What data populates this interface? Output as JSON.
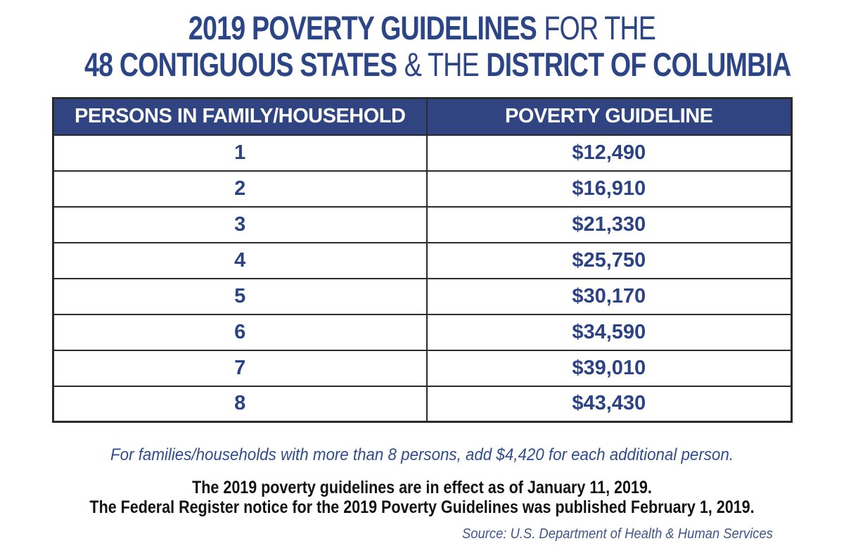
{
  "title": {
    "line1_strong": "2019 POVERTY GUIDELINES",
    "line1_light": "FOR THE",
    "line2_strong1": "48 CONTIGUOUS STATES",
    "line2_light": "& THE",
    "line2_strong2": "DISTRICT OF COLUMBIA"
  },
  "table": {
    "headers": [
      "PERSONS IN FAMILY/HOUSEHOLD",
      "POVERTY GUIDELINE"
    ],
    "rows": [
      {
        "persons": "1",
        "guideline": "$12,490"
      },
      {
        "persons": "2",
        "guideline": "$16,910"
      },
      {
        "persons": "3",
        "guideline": "$21,330"
      },
      {
        "persons": "4",
        "guideline": "$25,750"
      },
      {
        "persons": "5",
        "guideline": "$30,170"
      },
      {
        "persons": "6",
        "guideline": "$34,590"
      },
      {
        "persons": "7",
        "guideline": "$39,010"
      },
      {
        "persons": "8",
        "guideline": "$43,430"
      }
    ]
  },
  "notes": {
    "additional_person": "For families/households with more than 8 persons, add $4,420 for each additional person.",
    "effective_line1": "The 2019 poverty guidelines are in effect as of January 11, 2019.",
    "effective_line2": "The Federal Register notice for the 2019 Poverty Guidelines was published February 1, 2019.",
    "source": "Source: U.S. Department of Health & Human Services"
  },
  "colors": {
    "title_navy": "#2c4587",
    "header_background": "#2f4480",
    "header_text": "#ffffff",
    "value_text": "#2b4385",
    "note_navy": "#2f4d8c",
    "source_navy": "#41568c",
    "border": "#2a2a2a",
    "body_black": "#121212",
    "page_background": "#ffffff"
  },
  "chart_data": {
    "type": "table",
    "title": "2019 POVERTY GUIDELINES FOR THE 48 CONTIGUOUS STATES & THE DISTRICT OF COLUMBIA",
    "columns": [
      "PERSONS IN FAMILY/HOUSEHOLD",
      "POVERTY GUIDELINE"
    ],
    "rows": [
      [
        1,
        "$12,490"
      ],
      [
        2,
        "$16,910"
      ],
      [
        3,
        "$21,330"
      ],
      [
        4,
        "$25,750"
      ],
      [
        5,
        "$30,170"
      ],
      [
        6,
        "$34,590"
      ],
      [
        7,
        "$39,010"
      ],
      [
        8,
        "$43,430"
      ]
    ],
    "guideline_values_numeric": [
      12490,
      16910,
      21330,
      25750,
      30170,
      34590,
      39010,
      43430
    ],
    "additional_person_amount": 4420,
    "annotations": [
      "For families/households with more than 8 persons, add $4,420 for each additional person.",
      "The 2019 poverty guidelines are in effect as of January 11, 2019.",
      "The Federal Register notice for the 2019 Poverty Guidelines was published February 1, 2019.",
      "Source: U.S. Department of Health & Human Services"
    ]
  }
}
